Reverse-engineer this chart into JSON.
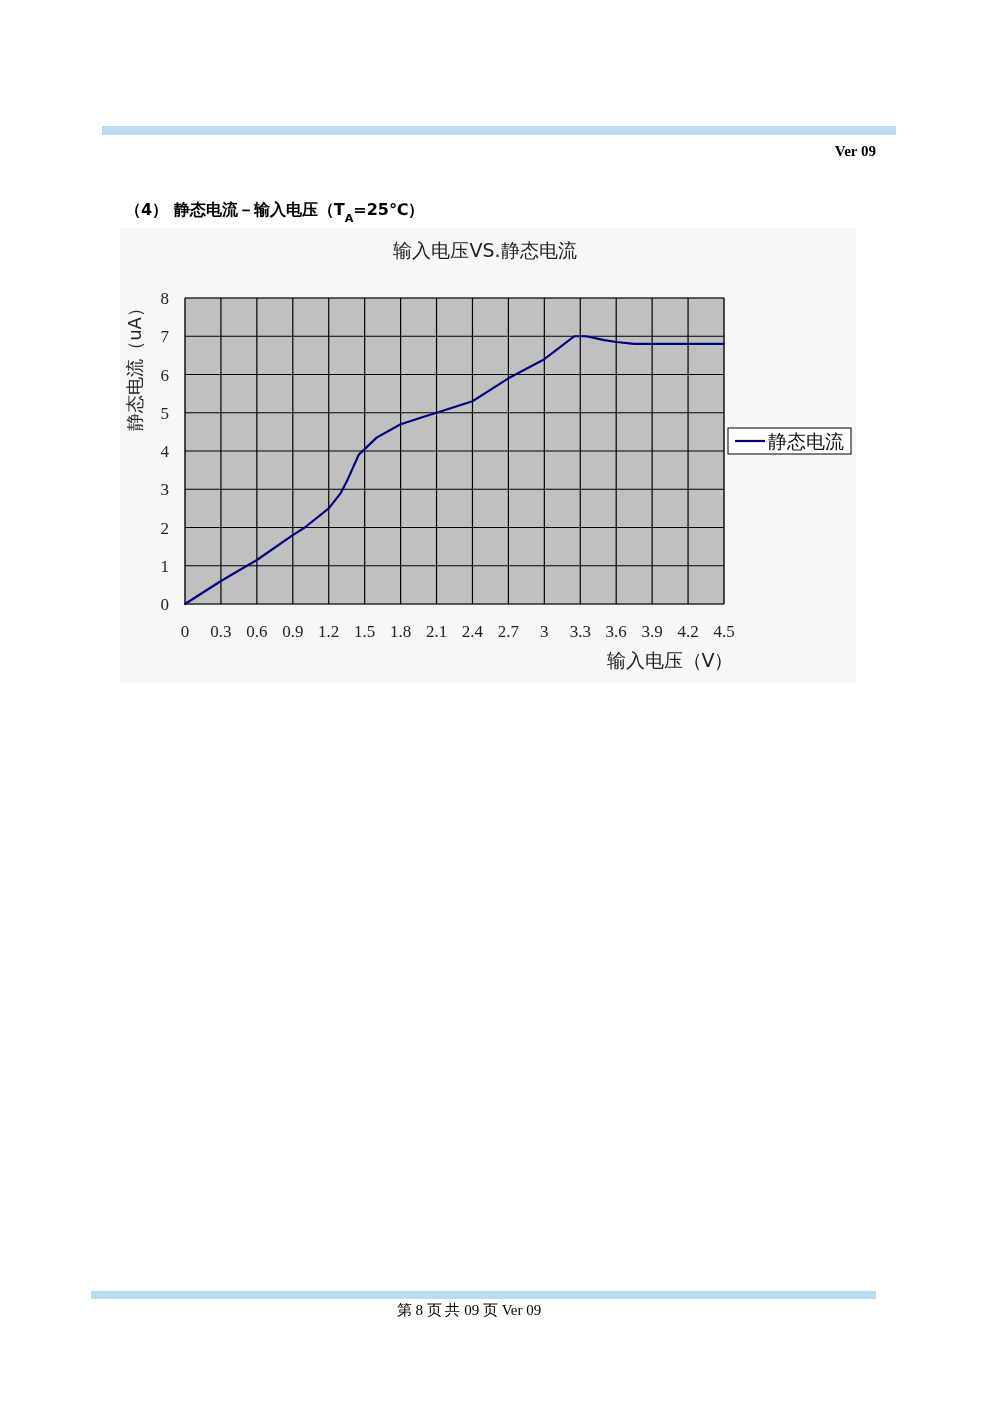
{
  "chart_data": {
    "type": "line",
    "title": "（4）  静态电流－输入电压（T$_{A}$=25℃）",
    "subtitle": "输入电压VS.静态电流",
    "xlabel": "输入电压（V）",
    "ylabel": "静态电流（uA）",
    "x": [
      0,
      0.3,
      0.6,
      0.9,
      1.0,
      1.2,
      1.3,
      1.35,
      1.45,
      1.5,
      1.6,
      1.8,
      2.0,
      2.1,
      2.4,
      2.5,
      2.7,
      3.0,
      3.25,
      3.35,
      3.5,
      3.6,
      3.75,
      4.5
    ],
    "series": [
      {
        "name": "静态电流",
        "color": "#000080",
        "values": [
          0,
          0.6,
          1.15,
          1.8,
          2.0,
          2.5,
          2.9,
          3.2,
          3.9,
          4.05,
          4.35,
          4.7,
          4.9,
          5.0,
          5.3,
          5.5,
          5.9,
          6.4,
          7.0,
          7.0,
          6.9,
          6.85,
          6.8,
          6.8
        ]
      }
    ],
    "xlim": [
      0,
      4.5
    ],
    "ylim": [
      0,
      8
    ],
    "xticks": [
      0,
      0.3,
      0.6,
      0.9,
      1.2,
      1.5,
      1.8,
      2.1,
      2.4,
      2.7,
      3,
      3.3,
      3.6,
      3.9,
      4.2,
      4.5
    ],
    "yticks": [
      0,
      1,
      2,
      3,
      4,
      5,
      6,
      7,
      8
    ],
    "grid": true,
    "legend": "right",
    "annotations": [
      "Ver 09",
      "第 8 页 共 09 页 Ver 09"
    ]
  }
}
